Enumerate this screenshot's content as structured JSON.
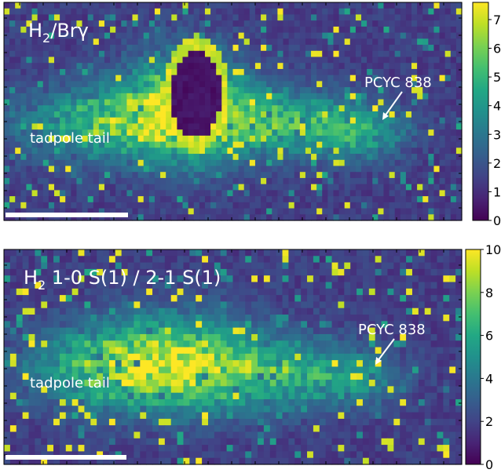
{
  "chart_data": [
    {
      "type": "heatmap",
      "title": {
        "main": "H",
        "sub": "2",
        "rest": "/Brγ"
      },
      "colormap": "viridis",
      "colorbar": {
        "range": [
          0,
          7.6
        ],
        "ticks": [
          "0",
          "1",
          "2",
          "3",
          "4",
          "5",
          "6",
          "7"
        ],
        "tick_values": [
          0,
          1,
          2,
          3,
          4,
          5,
          6,
          7
        ]
      },
      "grid": false,
      "annotations": {
        "object_label": "PCYC 838",
        "region_label": "tadpole tail"
      },
      "scale_bar_color": "#ffffff",
      "field": {
        "cols": 82,
        "rows": 36,
        "background_level": 0.12,
        "hole": {
          "cx": 0.42,
          "cy": 0.42,
          "rx": 0.055,
          "ry": 0.2
        },
        "emission": [
          {
            "cx": 0.4,
            "cy": 0.47,
            "rx": 0.12,
            "ry": 0.24,
            "amp": 0.7
          },
          {
            "cx": 0.24,
            "cy": 0.55,
            "rx": 0.2,
            "ry": 0.17,
            "amp": 0.55
          },
          {
            "cx": 0.61,
            "cy": 0.55,
            "rx": 0.16,
            "ry": 0.15,
            "amp": 0.5
          },
          {
            "cx": 0.78,
            "cy": 0.6,
            "rx": 0.1,
            "ry": 0.12,
            "amp": 0.35
          }
        ]
      }
    },
    {
      "type": "heatmap",
      "title": {
        "main": "H",
        "sub": "2",
        "rest": " 1-0 S(1) / 2-1 S(1)"
      },
      "colormap": "viridis",
      "colorbar": {
        "range": [
          0,
          10
        ],
        "ticks": [
          "0",
          "2",
          "4",
          "6",
          "8",
          "10"
        ],
        "tick_values": [
          0,
          2,
          4,
          6,
          8,
          10
        ]
      },
      "grid": false,
      "annotations": {
        "object_label": "PCYC 838",
        "region_label": "tadpole tail"
      },
      "scale_bar_color": "#ffffff",
      "field": {
        "cols": 74,
        "rows": 33,
        "background_level": 0.12,
        "hole": null,
        "emission": [
          {
            "cx": 0.38,
            "cy": 0.52,
            "rx": 0.16,
            "ry": 0.22,
            "amp": 0.6
          },
          {
            "cx": 0.22,
            "cy": 0.55,
            "rx": 0.18,
            "ry": 0.18,
            "amp": 0.5
          },
          {
            "cx": 0.6,
            "cy": 0.58,
            "rx": 0.17,
            "ry": 0.16,
            "amp": 0.48
          },
          {
            "cx": 0.78,
            "cy": 0.6,
            "rx": 0.08,
            "ry": 0.12,
            "amp": 0.25
          }
        ]
      }
    }
  ]
}
